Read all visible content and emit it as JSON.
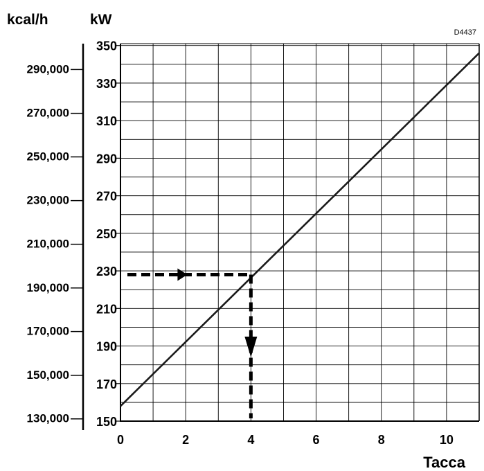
{
  "chart_data": {
    "type": "line",
    "code": "D4437",
    "x": {
      "label": "Tacca",
      "ticks": [
        0,
        2,
        4,
        6,
        8,
        10
      ],
      "tick_labels": [
        "0",
        "2",
        "4",
        "6",
        "8",
        "10"
      ],
      "range": [
        0,
        11
      ]
    },
    "y_kw": {
      "label": "kW",
      "ticks": [
        150,
        170,
        190,
        210,
        230,
        250,
        270,
        290,
        310,
        330,
        350
      ],
      "tick_labels": [
        "150",
        "170",
        "190",
        "210",
        "230",
        "250",
        "270",
        "290",
        "310",
        "330",
        "350"
      ],
      "range": [
        150,
        351
      ]
    },
    "y_kcal": {
      "label": "kcal/h",
      "tick_labels": [
        "130,000",
        "150,000",
        "170,000",
        "190,000",
        "210,000",
        "230,000",
        "250,000",
        "270,000",
        "290,000"
      ],
      "tick_kw": [
        151.2,
        174.4,
        197.7,
        220.9,
        244.2,
        267.4,
        290.7,
        313.9,
        337.2
      ]
    },
    "grid": true,
    "series": [
      {
        "x": [
          0,
          11
        ],
        "y": [
          158,
          346
        ],
        "color": "#1a1a1a"
      }
    ],
    "reading": {
      "x": 4,
      "y": 228,
      "style": "dashed",
      "arrows": [
        "right",
        "down"
      ]
    }
  }
}
